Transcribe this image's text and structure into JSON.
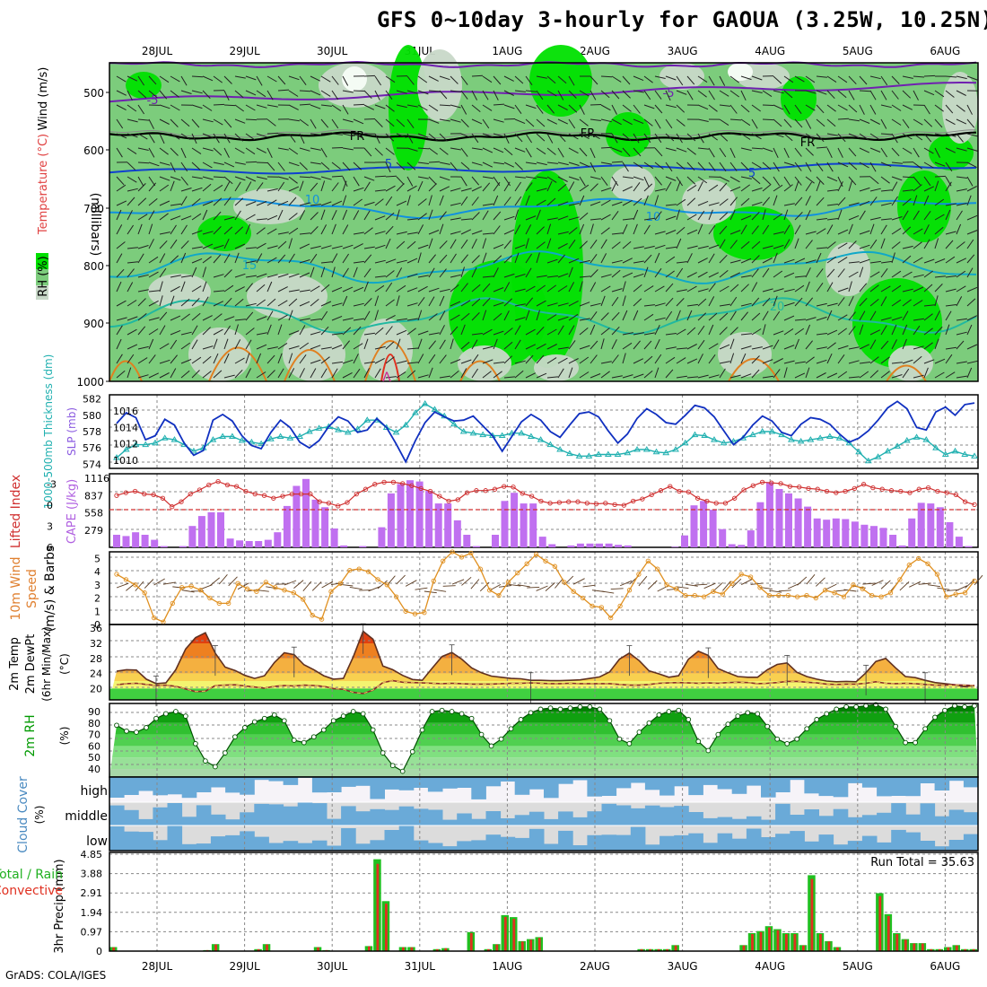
{
  "title": "GFS 0~10day 3-hourly for GAOUA (3.25W, 10.25N)",
  "footer": "GrADS: COLA/IGES",
  "dates": [
    "28JUL",
    "29JUL",
    "30JUL",
    "31JUL",
    "1AUG",
    "2AUG",
    "3AUG",
    "4AUG",
    "5AUG",
    "6AUG"
  ],
  "colors": {
    "rh_light": "#c8d8c8",
    "rh_mid": "#7ccc7c",
    "rh_bright": "#00e000",
    "wind5": "#7020b0",
    "temp_freeze": "#000000",
    "temp5": "#1040d0",
    "temp10": "#1090e0",
    "temp15": "#10a8c8",
    "temp20": "#20b8a0",
    "hot": "#e08020",
    "slp": "#1030c0",
    "thickness": "#20b0b0",
    "cape": "#c070f0",
    "li": "#d03030",
    "wind10m": "#e09020",
    "rh2m": "#009900",
    "cloud": "#6aaad8",
    "rain": "#20c020",
    "conv": "#e03020"
  },
  "cross_section": {
    "y_label": "(millibars)",
    "y_ticks": [
      "500",
      "600",
      "700",
      "800",
      "900",
      "1000"
    ],
    "legend_rh": "RH (%)",
    "legend_temp": "Temperature (°C)",
    "legend_wind": "Wind (m/s)",
    "contour_labels": [
      "-5",
      "FR",
      "5",
      "10",
      "15",
      "20"
    ]
  },
  "chart_data": [
    {
      "type": "line",
      "panel": "slp_thickness",
      "ylabel_left": "1000-500mb Thickness (dm)",
      "ylabel_right": "SLP (mb)",
      "yticks_left": [
        "574",
        "576",
        "578",
        "580",
        "582"
      ],
      "yticks_right": [
        "1010",
        "1012",
        "1014",
        "1016"
      ],
      "series": [
        {
          "name": "SLP (mb)",
          "values": [
            1014.5,
            1015.8,
            1015.2,
            1012.5,
            1013.0,
            1015.0,
            1014.3,
            1012.1,
            1010.6,
            1011.2,
            1014.9,
            1015.6,
            1014.8,
            1013.0,
            1011.8,
            1011.4,
            1013.4,
            1014.9,
            1014.0,
            1012.2,
            1011.5,
            1012.4,
            1014.1,
            1015.3,
            1014.8,
            1013.4,
            1013.7,
            1015.1,
            1014.0,
            1012.0,
            1009.8,
            1012.4,
            1014.6,
            1015.9,
            1015.3,
            1014.8,
            1014.9,
            1015.4,
            1014.2,
            1013.0,
            1011.1,
            1012.9,
            1014.7,
            1015.6,
            1014.9,
            1013.5,
            1012.8,
            1014.3,
            1015.7,
            1015.9,
            1015.3,
            1013.6,
            1012.1,
            1013.2,
            1015.1,
            1016.3,
            1015.6,
            1014.6,
            1014.4,
            1015.5,
            1016.7,
            1016.4,
            1015.3,
            1013.6,
            1011.9,
            1012.8,
            1014.3,
            1015.4,
            1014.8,
            1013.4,
            1013.0,
            1014.4,
            1015.2,
            1015.0,
            1014.4,
            1013.2,
            1012.2,
            1012.7,
            1013.6,
            1014.9,
            1016.4,
            1017.2,
            1016.3,
            1014.0,
            1013.7,
            1015.9,
            1016.5,
            1015.5,
            1016.8,
            1017.0
          ]
        },
        {
          "name": "1000-500mb Thickness (dm)",
          "values": [
            574.8,
            575.8,
            576.4,
            576.4,
            576.6,
            577.2,
            577.0,
            576.4,
            575.6,
            576.0,
            577.0,
            577.4,
            577.4,
            576.9,
            576.7,
            576.5,
            577.1,
            577.4,
            577.2,
            577.4,
            578.0,
            578.4,
            578.6,
            578.2,
            577.9,
            578.3,
            579.4,
            579.4,
            578.5,
            577.9,
            578.8,
            580.3,
            581.4,
            580.7,
            579.9,
            578.9,
            578.0,
            577.8,
            577.6,
            577.5,
            577.5,
            577.8,
            577.8,
            577.4,
            577.0,
            576.4,
            575.8,
            575.3,
            575.0,
            575.0,
            575.2,
            575.2,
            575.2,
            575.4,
            575.8,
            575.8,
            575.5,
            575.4,
            575.8,
            576.6,
            577.6,
            577.5,
            577.0,
            576.6,
            576.8,
            577.2,
            577.6,
            578.0,
            578.0,
            577.6,
            577.0,
            576.8,
            577.0,
            577.2,
            577.4,
            577.2,
            576.6,
            575.5,
            574.4,
            574.9,
            575.6,
            576.2,
            576.9,
            577.3,
            577.0,
            576.0,
            575.2,
            575.6,
            575.2,
            575.0
          ]
        }
      ]
    },
    {
      "type": "bar",
      "panel": "cape_li",
      "ylabel_left": "Lifted Index",
      "ylabel_right": "CAPE (J/kg)",
      "yticks_left": [
        "-3",
        "0",
        "3",
        "6"
      ],
      "yticks_right": [
        "279",
        "558",
        "837",
        "1116"
      ],
      "series": [
        {
          "name": "CAPE (J/kg)",
          "values": [
            200,
            180,
            240,
            200,
            120,
            20,
            0,
            20,
            340,
            500,
            560,
            560,
            140,
            110,
            100,
            100,
            120,
            240,
            660,
            980,
            1090,
            760,
            640,
            300,
            30,
            0,
            20,
            0,
            320,
            860,
            1010,
            1070,
            1050,
            900,
            700,
            700,
            430,
            200,
            20,
            0,
            200,
            740,
            870,
            700,
            700,
            170,
            50,
            0,
            30,
            60,
            60,
            60,
            60,
            40,
            30,
            0,
            0,
            0,
            0,
            10,
            190,
            670,
            740,
            600,
            290,
            50,
            40,
            270,
            720,
            1040,
            930,
            860,
            780,
            650,
            460,
            440,
            460,
            450,
            410,
            360,
            340,
            310,
            200,
            30,
            460,
            710,
            700,
            640,
            400,
            170,
            20
          ]
        },
        {
          "name": "Lifted Index",
          "values": [
            -1.4,
            -1.8,
            -2.0,
            -1.6,
            -1.5,
            -1.0,
            0.2,
            -0.5,
            -1.6,
            -2.2,
            -2.9,
            -3.4,
            -2.9,
            -2.7,
            -2.0,
            -1.6,
            -1.4,
            -1.0,
            -1.3,
            -1.6,
            -1.6,
            -1.6,
            -0.5,
            -0.3,
            0.1,
            -0.4,
            -1.6,
            -2.3,
            -3.0,
            -3.3,
            -3.3,
            -3.1,
            -2.8,
            -2.4,
            -2.0,
            -1.3,
            -0.6,
            -0.8,
            -1.8,
            -2.1,
            -2.1,
            -2.3,
            -2.7,
            -2.6,
            -1.7,
            -1.3,
            -0.6,
            -0.3,
            -0.4,
            -0.5,
            -0.5,
            -0.3,
            -0.2,
            -0.3,
            -0.1,
            0.0,
            -0.6,
            -0.9,
            -1.5,
            -2.1,
            -2.7,
            -2.0,
            -1.9,
            -1.0,
            -0.6,
            -0.3,
            -0.3,
            -1.0,
            -2.2,
            -2.8,
            -3.3,
            -3.2,
            -3.1,
            -2.7,
            -2.6,
            -2.4,
            -2.3,
            -2.0,
            -1.8,
            -2.0,
            -2.4,
            -3.0,
            -2.5,
            -2.3,
            -2.1,
            -2.0,
            -1.8,
            -2.3,
            -2.5,
            -2.0,
            -1.8,
            -1.5,
            -0.5,
            -0.1
          ]
        }
      ]
    },
    {
      "type": "line",
      "panel": "wind10m",
      "ylabel": "10m Wind Speed (m/s) & Barbs",
      "yticks": [
        "0",
        "1",
        "2",
        "3",
        "4",
        "5"
      ],
      "series": [
        {
          "name": "10m Wind Speed",
          "values": [
            3.8,
            3.4,
            3.0,
            2.4,
            0.5,
            0.2,
            1.6,
            2.8,
            2.9,
            2.6,
            2.0,
            1.6,
            1.6,
            3.1,
            2.7,
            2.5,
            3.2,
            2.8,
            2.6,
            2.4,
            1.9,
            0.7,
            0.4,
            2.5,
            3.1,
            4.1,
            4.2,
            4.0,
            3.4,
            3.0,
            2.1,
            1.0,
            0.8,
            0.9,
            3.3,
            4.8,
            5.5,
            5.1,
            5.4,
            4.2,
            2.6,
            2.2,
            3.2,
            3.9,
            4.6,
            5.3,
            4.8,
            4.4,
            3.2,
            2.5,
            2.0,
            1.4,
            1.3,
            0.5,
            1.4,
            2.6,
            3.8,
            4.8,
            4.2,
            3.0,
            2.7,
            2.2,
            2.2,
            2.1,
            2.5,
            2.3,
            3.1,
            3.8,
            3.6,
            2.8,
            2.2,
            2.2,
            2.2,
            2.1,
            2.2,
            2.0,
            2.6,
            2.4,
            2.1,
            3.0,
            2.7,
            2.2,
            2.1,
            2.4,
            3.4,
            4.5,
            5.0,
            4.6,
            3.8,
            2.1,
            2.3,
            2.4,
            3.3
          ]
        }
      ]
    },
    {
      "type": "area",
      "panel": "temp2m",
      "ylabel": "2m Temp 2m DewPt (6hr Min/Max) (°C)",
      "yticks": [
        "20",
        "24",
        "28",
        "32",
        "36"
      ],
      "series": [
        {
          "name": "2m Temp",
          "values": [
            24.6,
            25.0,
            24.9,
            22.5,
            21.3,
            21.5,
            25.0,
            30.5,
            33.5,
            34.8,
            29.4,
            25.7,
            24.8,
            23.5,
            22.7,
            23.4,
            26.9,
            29.5,
            29.0,
            26.3,
            25.0,
            23.4,
            22.5,
            22.7,
            28.4,
            35.2,
            33.1,
            26.0,
            25.0,
            23.5,
            22.4,
            22.2,
            25.4,
            28.5,
            29.6,
            27.8,
            25.5,
            24.2,
            23.3,
            23.0,
            22.7,
            22.6,
            22.2,
            22.2,
            22.1,
            22.1,
            22.2,
            22.3,
            22.7,
            23.1,
            24.4,
            27.8,
            29.4,
            27.4,
            24.7,
            23.9,
            23.0,
            23.4,
            27.8,
            29.9,
            28.8,
            25.3,
            24.2,
            23.2,
            23.0,
            23.0,
            25.0,
            26.4,
            26.8,
            24.3,
            23.2,
            22.5,
            22.0,
            21.8,
            21.9,
            21.8,
            24.2,
            27.2,
            28.0,
            25.5,
            23.2,
            22.9,
            22.2,
            21.6,
            21.3,
            21.0,
            20.5,
            20.8
          ]
        },
        {
          "name": "2m DewPt",
          "values": [
            21.0,
            21.3,
            21.4,
            21.1,
            20.8,
            20.9,
            20.6,
            19.9,
            19.2,
            19.3,
            20.8,
            20.9,
            21.0,
            20.7,
            20.4,
            20.1,
            20.6,
            20.8,
            20.7,
            20.9,
            20.8,
            20.6,
            20.0,
            19.8,
            19.0,
            18.7,
            19.6,
            21.6,
            22.1,
            21.7,
            21.6,
            21.5,
            21.4,
            21.3,
            21.4,
            21.3,
            21.2,
            21.2,
            21.2,
            21.3,
            21.4,
            21.4,
            21.5,
            21.4,
            21.3,
            21.3,
            21.4,
            21.3,
            21.3,
            21.3,
            21.3,
            21.1,
            20.9,
            20.9,
            21.1,
            21.4,
            21.5,
            21.6,
            21.5,
            21.4,
            21.5,
            21.4,
            21.6,
            21.7,
            21.6,
            21.3,
            21.4,
            21.6,
            21.9,
            21.9,
            21.7,
            21.5,
            21.2,
            21.1,
            21.2,
            21.2,
            21.4,
            21.8,
            21.4,
            21.3,
            21.4,
            21.3,
            21.1,
            20.9,
            20.9,
            21.0,
            20.9,
            20.8
          ]
        }
      ]
    },
    {
      "type": "area",
      "panel": "rh2m",
      "ylabel": "2m RH (%)",
      "yticks": [
        "40",
        "50",
        "60",
        "70",
        "80",
        "90"
      ],
      "series": [
        {
          "name": "2m RH",
          "values": [
            78,
            73,
            72,
            76,
            84,
            88,
            90,
            86,
            62,
            47,
            42,
            54,
            68,
            76,
            81,
            84,
            87,
            82,
            65,
            63,
            68,
            74,
            82,
            86,
            90,
            88,
            74,
            54,
            43,
            38,
            55,
            74,
            90,
            91,
            90,
            88,
            84,
            70,
            60,
            66,
            75,
            83,
            89,
            92,
            93,
            92,
            93,
            94,
            94,
            92,
            82,
            66,
            62,
            72,
            80,
            87,
            90,
            91,
            83,
            64,
            56,
            70,
            79,
            86,
            89,
            88,
            77,
            66,
            62,
            66,
            75,
            83,
            88,
            92,
            94,
            94,
            95,
            96,
            92,
            77,
            63,
            63,
            75,
            85,
            91,
            95,
            94,
            95
          ]
        }
      ]
    },
    {
      "type": "area",
      "panel": "cloud",
      "ylabel": "Cloud Cover (%)",
      "layers": [
        "high",
        "middle",
        "low"
      ]
    },
    {
      "type": "bar",
      "panel": "precip",
      "ylabel": "3hr Precip (mm)",
      "ylabel_left": "Total / Rain Convective",
      "yticks": [
        "0",
        "0.97",
        "1.94",
        "2.91",
        "3.88",
        "4.85"
      ],
      "run_total": "Run Total = 35.63",
      "series": [
        {
          "name": "Total",
          "values": [
            0.2,
            0,
            0,
            0,
            0,
            0,
            0,
            0,
            0,
            0,
            0,
            0.05,
            0.35,
            0,
            0,
            0,
            0,
            0.1,
            0.35,
            0,
            0,
            0,
            0,
            0,
            0.2,
            0.05,
            0,
            0,
            0,
            0,
            0.25,
            4.6,
            2.5,
            0,
            0.2,
            0.2,
            0,
            0,
            0.1,
            0.15,
            0,
            0,
            0.95,
            0,
            0.1,
            0.35,
            1.8,
            1.7,
            0.5,
            0.6,
            0.7,
            0,
            0,
            0,
            0,
            0,
            0,
            0,
            0,
            0,
            0,
            0,
            0.1,
            0.1,
            0.1,
            0.1,
            0.3,
            0,
            0,
            0,
            0,
            0,
            0,
            0,
            0.3,
            0.9,
            1.0,
            1.25,
            1.1,
            0.9,
            0.9,
            0.3,
            3.8,
            0.9,
            0.5,
            0.2,
            0,
            0,
            0,
            0,
            2.9,
            1.85,
            0.9,
            0.6,
            0.4,
            0.4,
            0.1,
            0.1,
            0.2,
            0.3,
            0.1,
            0.1
          ]
        }
      ]
    }
  ]
}
